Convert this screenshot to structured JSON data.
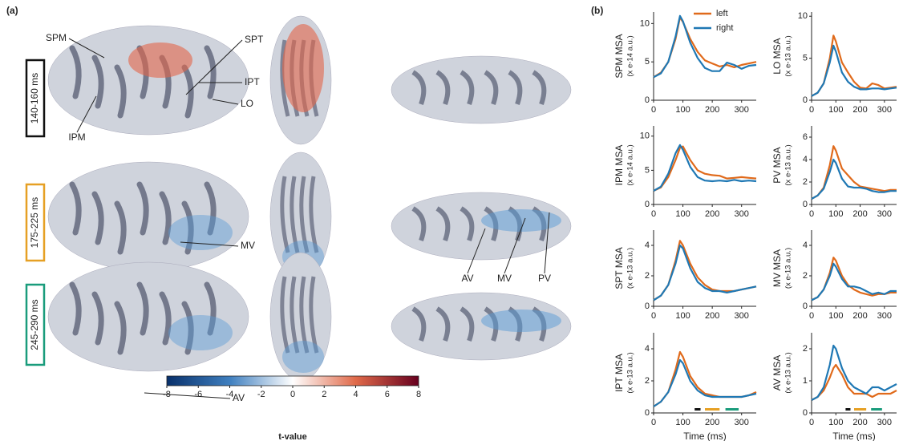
{
  "panel_a": {
    "tag": "(a)",
    "windows": [
      {
        "label": "140-160 ms",
        "color": "#111111"
      },
      {
        "label": "175-225 ms",
        "color": "#e6a024"
      },
      {
        "label": "245-290 ms",
        "color": "#1a9c7c"
      }
    ],
    "labels": [
      "SPM",
      "SPT",
      "IPT",
      "LO",
      "IPM",
      "MV",
      "AV",
      "MV",
      "PV",
      "AV"
    ]
  },
  "panel_b": {
    "tag": "(b)"
  },
  "colorbar": {
    "xlim": [
      -8,
      8
    ],
    "xticks": [
      -8,
      -6,
      -4,
      -2,
      0,
      2,
      4,
      6,
      8
    ],
    "xlabel": "t-value",
    "colors": [
      "#08306b",
      "#3f7fbf",
      "#ffffff",
      "#e06a4a",
      "#67001f"
    ]
  },
  "chart_data": [
    {
      "type": "line",
      "ylabel": "SPM MSA",
      "yunit": "(x e-14 a.u.)",
      "xlim": [
        0,
        350
      ],
      "xticks": [
        0,
        100,
        200,
        300
      ],
      "ylim": [
        0,
        11.5
      ],
      "yticks": [
        0,
        5,
        10
      ],
      "x": [
        0,
        25,
        50,
        75,
        90,
        100,
        125,
        150,
        175,
        200,
        225,
        250,
        275,
        300,
        325,
        350
      ],
      "series": [
        {
          "name": "left",
          "color": "#e06a1b",
          "values": [
            3,
            3.6,
            5,
            8,
            10.8,
            10.2,
            8,
            6.3,
            5.2,
            4.8,
            4.4,
            4.6,
            4.3,
            4.6,
            4.8,
            5
          ]
        },
        {
          "name": "right",
          "color": "#1f78b4",
          "values": [
            3,
            3.5,
            5,
            8.3,
            11,
            10.3,
            7.5,
            5.5,
            4.2,
            3.8,
            3.8,
            4.9,
            4.6,
            4.1,
            4.5,
            4.6
          ]
        }
      ]
    },
    {
      "type": "line",
      "ylabel": "LO MSA",
      "yunit": "(x e-13 a.u.)",
      "xlim": [
        0,
        350
      ],
      "xticks": [
        0,
        100,
        200,
        300
      ],
      "ylim": [
        0,
        10.5
      ],
      "yticks": [
        0,
        5,
        10
      ],
      "x": [
        0,
        25,
        50,
        75,
        90,
        100,
        125,
        150,
        175,
        200,
        225,
        250,
        275,
        300,
        325,
        350
      ],
      "series": [
        {
          "color": "#e06a1b",
          "values": [
            0.5,
            0.9,
            2,
            5,
            7.7,
            7,
            4.5,
            3.3,
            2.2,
            1.5,
            1.4,
            2,
            1.8,
            1.4,
            1.5,
            1.6
          ]
        },
        {
          "color": "#1f78b4",
          "values": [
            0.5,
            0.9,
            2,
            4.5,
            6.5,
            5.8,
            3.3,
            2.2,
            1.6,
            1.3,
            1.3,
            1.4,
            1.4,
            1.3,
            1.4,
            1.5
          ]
        }
      ]
    },
    {
      "type": "line",
      "ylabel": "IPM MSA",
      "yunit": "(x e-14 a.u.)",
      "xlim": [
        0,
        350
      ],
      "xticks": [
        0,
        100,
        200,
        300
      ],
      "ylim": [
        0,
        11.5
      ],
      "yticks": [
        0,
        5,
        10
      ],
      "x": [
        0,
        25,
        50,
        75,
        90,
        100,
        125,
        150,
        175,
        200,
        225,
        250,
        275,
        300,
        325,
        350
      ],
      "series": [
        {
          "color": "#e06a1b",
          "values": [
            2,
            2.5,
            4,
            6.5,
            8.3,
            8.5,
            6.5,
            5,
            4.5,
            4.3,
            4.2,
            3.8,
            3.9,
            4,
            3.9,
            3.8
          ]
        },
        {
          "color": "#1f78b4",
          "values": [
            2,
            2.6,
            4.5,
            7.5,
            8.7,
            8,
            5.5,
            4,
            3.5,
            3.4,
            3.5,
            3.4,
            3.6,
            3.4,
            3.5,
            3.4
          ]
        }
      ]
    },
    {
      "type": "line",
      "ylabel": "PV MSA",
      "yunit": "(x e-13 a.u.)",
      "xlim": [
        0,
        350
      ],
      "xticks": [
        0,
        100,
        200,
        300
      ],
      "ylim": [
        0,
        7
      ],
      "yticks": [
        0,
        2,
        4,
        6
      ],
      "x": [
        0,
        25,
        50,
        75,
        90,
        100,
        125,
        150,
        175,
        200,
        225,
        250,
        275,
        300,
        325,
        350
      ],
      "series": [
        {
          "color": "#e06a1b",
          "values": [
            0.5,
            0.8,
            1.5,
            3.5,
            5.2,
            4.8,
            3.2,
            2.6,
            2,
            1.6,
            1.5,
            1.4,
            1.3,
            1.2,
            1.3,
            1.3
          ]
        },
        {
          "color": "#1f78b4",
          "values": [
            0.5,
            0.8,
            1.4,
            2.9,
            4,
            3.7,
            2.3,
            1.6,
            1.5,
            1.5,
            1.4,
            1.2,
            1.1,
            1.1,
            1.2,
            1.2
          ]
        }
      ]
    },
    {
      "type": "line",
      "ylabel": "SPT MSA",
      "yunit": "(x e-13 a.u.)",
      "xlim": [
        0,
        350
      ],
      "xticks": [
        0,
        100,
        200,
        300
      ],
      "ylim": [
        0,
        5
      ],
      "yticks": [
        0,
        2,
        4
      ],
      "x": [
        0,
        25,
        50,
        75,
        90,
        100,
        125,
        150,
        175,
        200,
        225,
        250,
        275,
        300,
        325,
        350
      ],
      "series": [
        {
          "color": "#e06a1b",
          "values": [
            0.4,
            0.7,
            1.4,
            3,
            4.3,
            4,
            2.8,
            1.9,
            1.4,
            1.1,
            1,
            1,
            1,
            1.1,
            1.2,
            1.3
          ]
        },
        {
          "color": "#1f78b4",
          "values": [
            0.4,
            0.7,
            1.4,
            2.8,
            4,
            3.8,
            2.5,
            1.6,
            1.2,
            1,
            1,
            0.9,
            1,
            1.1,
            1.2,
            1.3
          ]
        }
      ]
    },
    {
      "type": "line",
      "ylabel": "MV MSA",
      "yunit": "(x e-13 a.u.)",
      "xlim": [
        0,
        350
      ],
      "xticks": [
        0,
        100,
        200,
        300
      ],
      "ylim": [
        0,
        5
      ],
      "yticks": [
        0,
        2,
        4
      ],
      "x": [
        0,
        25,
        50,
        75,
        90,
        100,
        125,
        150,
        175,
        200,
        225,
        250,
        275,
        300,
        325,
        350
      ],
      "series": [
        {
          "color": "#e06a1b",
          "values": [
            0.4,
            0.6,
            1.1,
            2.2,
            3.2,
            3,
            2,
            1.4,
            1.1,
            0.9,
            0.8,
            0.7,
            0.8,
            0.8,
            0.9,
            0.9
          ]
        },
        {
          "color": "#1f78b4",
          "values": [
            0.4,
            0.6,
            1.1,
            2,
            2.8,
            2.6,
            1.8,
            1.3,
            1.3,
            1.2,
            1,
            0.8,
            0.9,
            0.8,
            1,
            1
          ]
        }
      ]
    },
    {
      "type": "line",
      "ylabel": "IPT MSA",
      "yunit": "(x e-13 a.u.)",
      "xlim": [
        0,
        350
      ],
      "xticks": [
        0,
        100,
        200,
        300
      ],
      "ylim": [
        0,
        5
      ],
      "yticks": [
        0,
        2,
        4
      ],
      "xlabel": "Time (ms)",
      "windows": [
        {
          "start": 140,
          "end": 160,
          "color": "#111111"
        },
        {
          "start": 175,
          "end": 225,
          "color": "#e6a024"
        },
        {
          "start": 245,
          "end": 290,
          "color": "#1a9c7c"
        }
      ],
      "x": [
        0,
        25,
        50,
        75,
        90,
        100,
        125,
        150,
        175,
        200,
        225,
        250,
        275,
        300,
        325,
        350
      ],
      "series": [
        {
          "color": "#e06a1b",
          "values": [
            0.4,
            0.7,
            1.3,
            2.7,
            3.8,
            3.5,
            2.3,
            1.6,
            1.2,
            1.1,
            1,
            1,
            1,
            1,
            1.1,
            1.3
          ]
        },
        {
          "color": "#1f78b4",
          "values": [
            0.4,
            0.7,
            1.3,
            2.4,
            3.3,
            3.1,
            2,
            1.4,
            1.1,
            1,
            1,
            1,
            1,
            1,
            1.1,
            1.2
          ]
        }
      ]
    },
    {
      "type": "line",
      "ylabel": "AV MSA",
      "yunit": "(x e-13 a.u.)",
      "xlim": [
        0,
        350
      ],
      "xticks": [
        0,
        100,
        200,
        300
      ],
      "ylim": [
        0,
        2.5
      ],
      "yticks": [
        0,
        1,
        2
      ],
      "xlabel": "Time (ms)",
      "windows": [
        {
          "start": 140,
          "end": 160,
          "color": "#111111"
        },
        {
          "start": 175,
          "end": 225,
          "color": "#e6a024"
        },
        {
          "start": 245,
          "end": 290,
          "color": "#1a9c7c"
        }
      ],
      "x": [
        0,
        25,
        50,
        75,
        90,
        100,
        125,
        150,
        175,
        200,
        225,
        250,
        275,
        300,
        325,
        350
      ],
      "series": [
        {
          "color": "#e06a1b",
          "values": [
            0.4,
            0.5,
            0.7,
            1.1,
            1.4,
            1.5,
            1.2,
            0.8,
            0.6,
            0.6,
            0.6,
            0.5,
            0.6,
            0.6,
            0.6,
            0.7
          ]
        },
        {
          "color": "#1f78b4",
          "values": [
            0.4,
            0.5,
            0.8,
            1.5,
            2.1,
            2,
            1.4,
            1,
            0.8,
            0.7,
            0.6,
            0.8,
            0.8,
            0.7,
            0.8,
            0.9
          ]
        }
      ]
    }
  ]
}
